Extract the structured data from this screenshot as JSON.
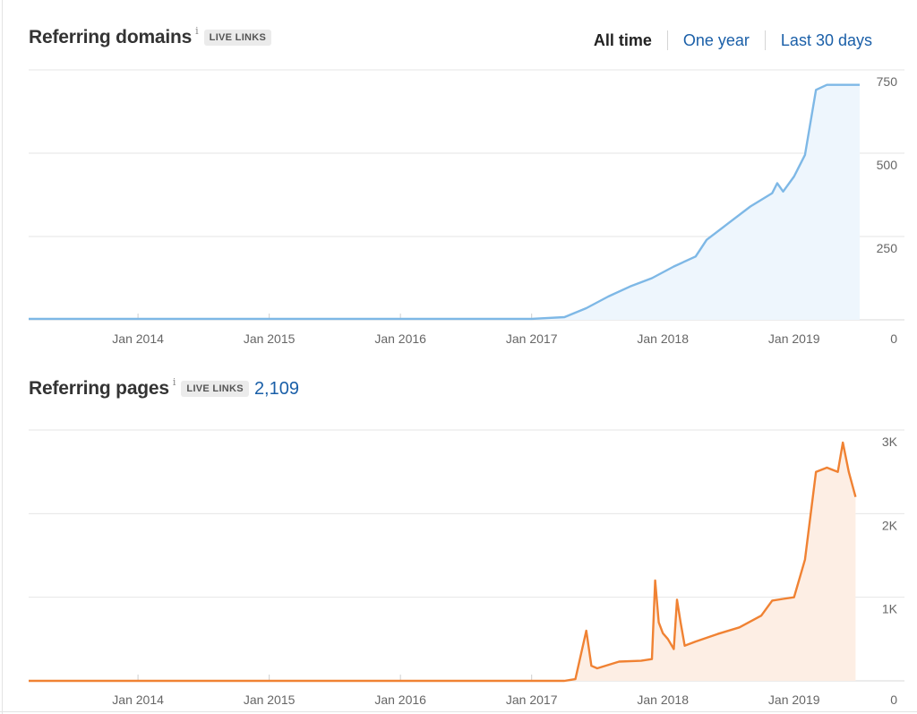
{
  "range_selector": {
    "options": [
      "All time",
      "One year",
      "Last 30 days"
    ],
    "active": "All time"
  },
  "sections": [
    {
      "title": "Referring domains",
      "info": "i",
      "badge": "LIVE LINKS",
      "count": ""
    },
    {
      "title": "Referring pages",
      "info": "i",
      "badge": "LIVE LINKS",
      "count": "2,109"
    }
  ],
  "chart_data": [
    {
      "type": "area",
      "title": "Referring domains",
      "x_ticks": [
        "Jan 2014",
        "Jan 2015",
        "Jan 2016",
        "Jan 2017",
        "Jan 2018",
        "Jan 2019"
      ],
      "y_ticks": [
        "0",
        "250",
        "500",
        "750"
      ],
      "ylim": [
        0,
        750
      ],
      "xlim": [
        "2013-03",
        "2019-07"
      ],
      "grid": true,
      "line_color": "#7eb8e6",
      "fill_color": "#eef6fd",
      "x": [
        "2013-03",
        "2014-01",
        "2015-01",
        "2016-01",
        "2017-01",
        "2017-04",
        "2017-06",
        "2017-08",
        "2017-10",
        "2017-12",
        "2018-02",
        "2018-04",
        "2018-05",
        "2018-07",
        "2018-09",
        "2018-11",
        "2018-11-15",
        "2018-12",
        "2019-01",
        "2019-02",
        "2019-03",
        "2019-04",
        "2019-05",
        "2019-06",
        "2019-07"
      ],
      "values": [
        3,
        3,
        3,
        3,
        3,
        8,
        35,
        70,
        100,
        125,
        160,
        190,
        240,
        290,
        340,
        380,
        410,
        385,
        430,
        495,
        690,
        705,
        705,
        705,
        705
      ],
      "y_axis_side": "right"
    },
    {
      "type": "area",
      "title": "Referring pages",
      "x_ticks": [
        "Jan 2014",
        "Jan 2015",
        "Jan 2016",
        "Jan 2017",
        "Jan 2018",
        "Jan 2019"
      ],
      "y_ticks": [
        "0",
        "1K",
        "2K",
        "3K"
      ],
      "ylim": [
        0,
        3000
      ],
      "xlim": [
        "2013-03",
        "2019-07"
      ],
      "grid": true,
      "line_color": "#f08233",
      "fill_color": "#fdeee4",
      "x": [
        "2013-03",
        "2014-01",
        "2015-01",
        "2016-01",
        "2017-01",
        "2017-04",
        "2017-05",
        "2017-06",
        "2017-06-15",
        "2017-07",
        "2017-09",
        "2017-11",
        "2017-12",
        "2017-12-10",
        "2017-12-20",
        "2018-01",
        "2018-01-15",
        "2018-02",
        "2018-02-10",
        "2018-02-20",
        "2018-03",
        "2018-04",
        "2018-06",
        "2018-08",
        "2018-10",
        "2018-11",
        "2018-12",
        "2019-01",
        "2019-02",
        "2019-03",
        "2019-04",
        "2019-05",
        "2019-05-15",
        "2019-06",
        "2019-06-20"
      ],
      "values": [
        0,
        0,
        0,
        0,
        0,
        0,
        20,
        600,
        180,
        150,
        230,
        240,
        260,
        1200,
        700,
        570,
        500,
        380,
        970,
        700,
        420,
        470,
        560,
        640,
        780,
        960,
        980,
        1000,
        1450,
        2500,
        2550,
        2500,
        2850,
        2500,
        2200
      ],
      "y_axis_side": "right"
    }
  ]
}
